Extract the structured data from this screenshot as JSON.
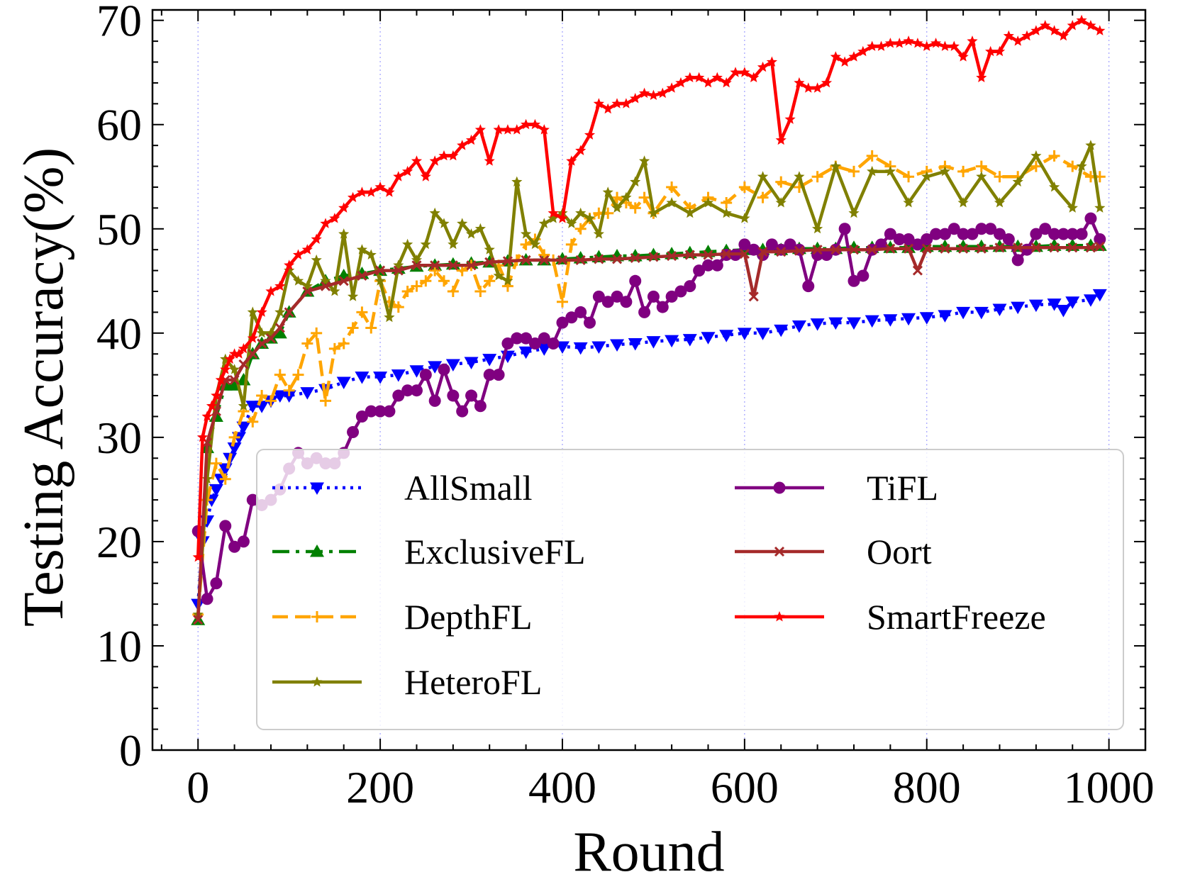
{
  "chart_data": {
    "type": "line",
    "title": "",
    "xlabel": "Round",
    "ylabel": "Testing Accuracy(%)",
    "xlim": [
      -50,
      1040
    ],
    "ylim": [
      0,
      71
    ],
    "xticks": [
      0,
      200,
      400,
      600,
      800,
      1000
    ],
    "xtick_labels": [
      "0",
      "200",
      "400",
      "600",
      "800",
      "1000"
    ],
    "yticks": [
      0,
      10,
      20,
      30,
      40,
      50,
      60,
      70
    ],
    "ytick_labels": [
      "0",
      "10",
      "20",
      "30",
      "40",
      "50",
      "60",
      "70"
    ],
    "grid": "vertical dotted lines at x ticks",
    "legend_position": "lower-right, two columns",
    "series": [
      {
        "name": "AllSmall",
        "color": "#0000ff",
        "linestyle": "dotted",
        "marker": "triangle-down",
        "x": [
          0,
          5,
          10,
          15,
          20,
          25,
          30,
          35,
          40,
          45,
          50,
          60,
          70,
          80,
          90,
          100,
          120,
          140,
          160,
          180,
          200,
          220,
          240,
          260,
          280,
          300,
          320,
          340,
          360,
          380,
          400,
          420,
          440,
          460,
          480,
          500,
          520,
          540,
          560,
          580,
          600,
          620,
          640,
          660,
          680,
          700,
          720,
          740,
          760,
          780,
          800,
          820,
          840,
          860,
          880,
          900,
          920,
          940,
          950,
          960,
          980,
          990
        ],
        "y": [
          14,
          20,
          22,
          24,
          25,
          26,
          27,
          28,
          29,
          30,
          31,
          33,
          33,
          33.5,
          34,
          34,
          34.3,
          34.6,
          35.3,
          35.8,
          35.8,
          36,
          36.4,
          36.8,
          37,
          37.2,
          37.5,
          37.8,
          38.2,
          38.5,
          38.7,
          38.6,
          38.7,
          38.9,
          39,
          39.2,
          39.3,
          39.4,
          39.6,
          39.8,
          40,
          40,
          40.3,
          40.7,
          40.9,
          41,
          41,
          41.2,
          41.3,
          41.4,
          41.5,
          41.7,
          42,
          42,
          42.3,
          42.5,
          42.7,
          42.8,
          42.2,
          43,
          43.2,
          43.7
        ]
      },
      {
        "name": "ExclusiveFL",
        "color": "#008000",
        "linestyle": "dashdot",
        "marker": "triangle-up",
        "x": [
          0,
          10,
          20,
          30,
          40,
          50,
          60,
          70,
          80,
          90,
          100,
          120,
          140,
          160,
          180,
          200,
          220,
          240,
          260,
          280,
          300,
          320,
          340,
          360,
          380,
          400,
          420,
          440,
          460,
          480,
          500,
          520,
          540,
          560,
          580,
          600,
          620,
          640,
          660,
          680,
          700,
          720,
          740,
          760,
          780,
          800,
          820,
          840,
          860,
          880,
          900,
          920,
          940,
          960,
          980,
          990
        ],
        "y": [
          12.5,
          29,
          32,
          35,
          35,
          35.5,
          38,
          39,
          39.5,
          40,
          42,
          44,
          45,
          45.5,
          45.7,
          46,
          46.2,
          46.4,
          46.5,
          46.6,
          46.7,
          46.8,
          46.9,
          47,
          47,
          47.1,
          47.2,
          47.3,
          47.4,
          47.4,
          47.5,
          47.6,
          47.7,
          47.8,
          47.9,
          48,
          48,
          48,
          48.1,
          48.1,
          48.1,
          48.2,
          48.2,
          48.2,
          48.2,
          48.3,
          48.3,
          48.3,
          48.3,
          48.3,
          48.3,
          48.3,
          48.4,
          48.4,
          48.4,
          48.4
        ]
      },
      {
        "name": "DepthFL",
        "color": "#ffa500",
        "linestyle": "dashed",
        "marker": "plus",
        "x": [
          0,
          10,
          20,
          30,
          40,
          50,
          60,
          70,
          80,
          90,
          100,
          110,
          120,
          130,
          140,
          150,
          160,
          170,
          180,
          190,
          200,
          210,
          220,
          230,
          240,
          250,
          260,
          270,
          280,
          290,
          300,
          310,
          320,
          330,
          340,
          350,
          360,
          370,
          380,
          390,
          400,
          410,
          420,
          430,
          440,
          450,
          460,
          470,
          480,
          490,
          500,
          520,
          540,
          560,
          580,
          600,
          620,
          640,
          660,
          680,
          700,
          720,
          740,
          760,
          780,
          800,
          820,
          840,
          860,
          880,
          900,
          920,
          940,
          960,
          980,
          990
        ],
        "y": [
          13,
          24,
          27.5,
          26,
          30,
          32.5,
          31.5,
          34,
          33.5,
          36,
          34.5,
          36,
          39,
          40,
          33.5,
          38.5,
          39,
          40.5,
          42,
          40.5,
          45,
          43,
          42.5,
          44,
          44.5,
          45,
          46,
          45,
          44,
          46,
          46.5,
          44,
          45,
          46.5,
          44.5,
          47,
          48.5,
          49,
          47.5,
          47,
          43,
          48.5,
          50,
          51,
          51.5,
          51.5,
          53,
          52.5,
          52,
          53,
          51.5,
          54,
          52,
          53,
          52.5,
          54,
          53,
          54.5,
          54,
          55,
          56,
          55.5,
          57,
          56,
          55,
          55.5,
          56,
          55.5,
          56,
          55,
          55,
          56,
          57,
          56,
          55,
          55
        ]
      },
      {
        "name": "HeteroFL",
        "color": "#808000",
        "linestyle": "solid",
        "marker": "star",
        "x": [
          0,
          10,
          20,
          30,
          40,
          50,
          60,
          70,
          80,
          90,
          100,
          110,
          120,
          130,
          140,
          150,
          160,
          170,
          180,
          190,
          200,
          210,
          220,
          230,
          240,
          250,
          260,
          270,
          280,
          290,
          300,
          310,
          320,
          330,
          340,
          350,
          360,
          370,
          380,
          390,
          400,
          410,
          420,
          430,
          440,
          450,
          460,
          470,
          480,
          490,
          500,
          520,
          540,
          560,
          580,
          600,
          620,
          640,
          660,
          680,
          700,
          720,
          740,
          760,
          780,
          800,
          820,
          840,
          860,
          880,
          900,
          920,
          940,
          960,
          970,
          980,
          990
        ],
        "y": [
          13,
          26,
          34,
          37.5,
          36.5,
          33,
          42,
          40,
          40,
          42,
          46,
          45,
          44.5,
          47,
          45,
          44,
          49.5,
          43.5,
          48,
          47.5,
          45,
          41.5,
          46.5,
          48.5,
          47,
          48.5,
          51.5,
          50.5,
          48.5,
          50.5,
          49.5,
          50,
          48,
          45.5,
          45,
          54.5,
          49.5,
          48.5,
          50.5,
          51,
          51.5,
          50.5,
          51.5,
          51,
          49.5,
          53.5,
          52,
          53,
          54.5,
          56.5,
          51.5,
          52.5,
          51.5,
          52.5,
          51.5,
          51,
          55,
          52.5,
          55,
          50,
          56,
          51.5,
          55.5,
          55.5,
          52.5,
          55,
          55.5,
          52.5,
          55,
          52.5,
          54.5,
          57,
          54,
          52,
          56,
          58,
          52
        ]
      },
      {
        "name": "TiFL",
        "color": "#800080",
        "linestyle": "solid",
        "marker": "circle",
        "x": [
          0,
          10,
          20,
          30,
          40,
          50,
          60,
          70,
          80,
          90,
          100,
          110,
          120,
          130,
          140,
          150,
          160,
          170,
          180,
          190,
          200,
          210,
          220,
          230,
          240,
          250,
          260,
          270,
          280,
          290,
          300,
          310,
          320,
          330,
          340,
          350,
          360,
          370,
          380,
          390,
          400,
          410,
          420,
          430,
          440,
          450,
          460,
          470,
          480,
          490,
          500,
          510,
          520,
          530,
          540,
          550,
          560,
          570,
          580,
          590,
          600,
          610,
          620,
          630,
          640,
          650,
          660,
          670,
          680,
          690,
          700,
          710,
          720,
          730,
          740,
          750,
          760,
          770,
          780,
          790,
          800,
          810,
          820,
          830,
          840,
          850,
          860,
          870,
          880,
          890,
          900,
          910,
          920,
          930,
          940,
          950,
          960,
          970,
          980,
          990
        ],
        "y": [
          21,
          14.5,
          16,
          21.5,
          19.5,
          20,
          24,
          23.5,
          24,
          25,
          27,
          28.5,
          27.5,
          28,
          27.5,
          27.5,
          28.5,
          30.5,
          32,
          32.5,
          32.5,
          32.5,
          34,
          34.5,
          34.5,
          36,
          33.5,
          36.5,
          34,
          32.5,
          34,
          33,
          36,
          36,
          39,
          39.5,
          39.5,
          39,
          39.5,
          39,
          41,
          41.5,
          42,
          41,
          43.5,
          43,
          43.5,
          43,
          45,
          42,
          43.5,
          42.5,
          43.5,
          44,
          44.5,
          46,
          46.5,
          46.5,
          47.5,
          47.5,
          48.5,
          48,
          47.5,
          48.5,
          48,
          48.5,
          48,
          44.5,
          47.5,
          47.5,
          48,
          50,
          45,
          45.5,
          48,
          48.5,
          49.5,
          49,
          49,
          48.5,
          49,
          49.5,
          49.5,
          50,
          49.5,
          49.5,
          50,
          50,
          49.5,
          49,
          47,
          48,
          49.5,
          50,
          49.5,
          49.5,
          49.5,
          49.5,
          51,
          49
        ]
      },
      {
        "name": "Oort",
        "color": "#a52a2a",
        "linestyle": "solid",
        "marker": "x",
        "x": [
          0,
          10,
          20,
          30,
          40,
          50,
          60,
          70,
          80,
          90,
          100,
          120,
          140,
          160,
          180,
          200,
          220,
          240,
          260,
          280,
          300,
          320,
          340,
          360,
          380,
          400,
          420,
          440,
          460,
          480,
          500,
          520,
          540,
          560,
          580,
          600,
          610,
          620,
          640,
          660,
          680,
          700,
          720,
          740,
          760,
          780,
          790,
          800,
          820,
          840,
          860,
          880,
          900,
          920,
          940,
          960,
          980,
          990
        ],
        "y": [
          12.5,
          29.5,
          32.5,
          35.5,
          35.5,
          37,
          38,
          39,
          39.5,
          40.5,
          42,
          44,
          44.5,
          45,
          45.5,
          46,
          46,
          46.5,
          46.5,
          46.5,
          46.5,
          46.8,
          46.9,
          47,
          47,
          47,
          47,
          47.1,
          47.1,
          47.2,
          47.3,
          47.4,
          47.5,
          47.5,
          47.6,
          47.6,
          43.5,
          47.8,
          47.8,
          47.9,
          48,
          48,
          48,
          48,
          48.1,
          48.1,
          46,
          48.1,
          48.1,
          48.1,
          48.1,
          48.2,
          48.2,
          48.2,
          48.2,
          48.2,
          48.2,
          48.3
        ]
      },
      {
        "name": "SmartFreeze",
        "color": "#ff0000",
        "linestyle": "solid",
        "marker": "star",
        "x": [
          0,
          5,
          10,
          15,
          20,
          25,
          30,
          35,
          40,
          45,
          50,
          60,
          70,
          80,
          90,
          100,
          110,
          120,
          130,
          140,
          150,
          160,
          170,
          180,
          190,
          200,
          210,
          220,
          230,
          240,
          250,
          260,
          270,
          280,
          290,
          300,
          310,
          320,
          330,
          340,
          350,
          360,
          370,
          380,
          390,
          400,
          410,
          420,
          430,
          440,
          450,
          460,
          470,
          480,
          490,
          500,
          510,
          520,
          530,
          540,
          550,
          560,
          570,
          580,
          590,
          600,
          610,
          620,
          630,
          640,
          650,
          660,
          670,
          680,
          690,
          700,
          710,
          720,
          730,
          740,
          750,
          760,
          770,
          780,
          790,
          800,
          810,
          820,
          830,
          840,
          850,
          860,
          870,
          880,
          890,
          900,
          910,
          920,
          930,
          940,
          950,
          960,
          970,
          980,
          990
        ],
        "y": [
          18.5,
          30,
          32,
          33,
          34,
          35.5,
          36.5,
          37.5,
          38,
          38,
          38.5,
          39.5,
          42,
          44,
          44.5,
          46.5,
          47.5,
          48,
          49,
          50.5,
          51,
          52,
          53,
          53.5,
          53.5,
          54,
          53.5,
          55,
          55.5,
          56.5,
          55,
          56.5,
          57,
          57,
          58,
          58.5,
          59.5,
          56.5,
          59.5,
          59.5,
          59.5,
          60,
          60,
          59.5,
          51.5,
          51,
          56.5,
          57.5,
          59,
          62,
          61.5,
          62,
          62,
          62.5,
          63,
          62.8,
          63,
          63.5,
          64,
          64.5,
          64.5,
          64,
          64.5,
          64,
          65,
          65,
          64.5,
          65.5,
          66,
          58.5,
          60.5,
          64,
          63.5,
          63.5,
          64,
          66.5,
          66,
          66.5,
          67,
          67.5,
          67.5,
          67.8,
          67.8,
          68,
          67.8,
          67.5,
          67.8,
          67.5,
          67.5,
          66.5,
          68,
          64.5,
          67,
          67,
          68.5,
          68,
          68.5,
          69,
          69.5,
          69,
          68.5,
          69.5,
          70,
          69.5,
          69
        ]
      }
    ]
  }
}
